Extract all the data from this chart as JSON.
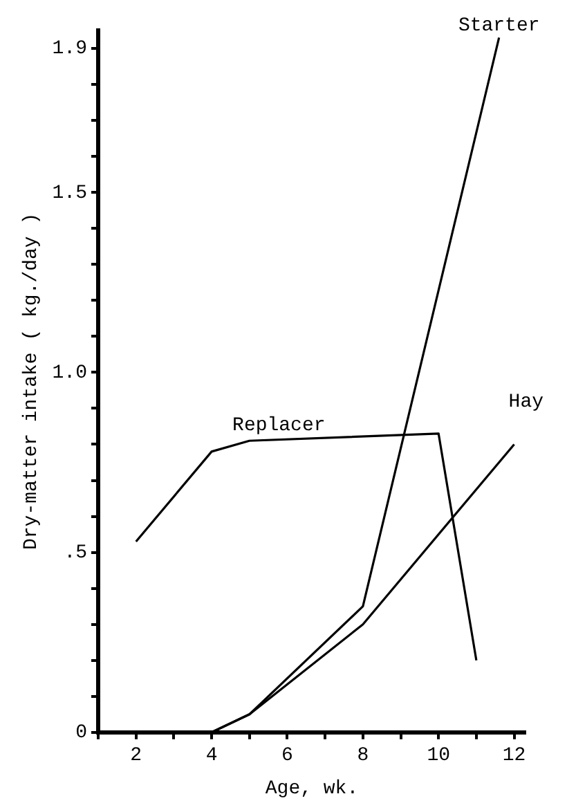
{
  "chart_data": {
    "type": "line",
    "xlabel": "Age, wk.",
    "ylabel": "Dry-matter intake ( kg./day )",
    "xlim": [
      1,
      12.3
    ],
    "ylim": [
      0,
      1.95
    ],
    "xticks": [
      {
        "value": 1,
        "label": null
      },
      2,
      {
        "value": 3,
        "label": null
      },
      4,
      {
        "value": 5,
        "label": null
      },
      6,
      {
        "value": 7,
        "label": null
      },
      8,
      {
        "value": 9,
        "label": null
      },
      10,
      {
        "value": 11,
        "label": null
      },
      12
    ],
    "yticks": [
      0,
      {
        "value": 0.1,
        "label": null
      },
      {
        "value": 0.2,
        "label": null
      },
      {
        "value": 0.3,
        "label": null
      },
      {
        "value": 0.4,
        "label": null
      },
      {
        "value": 0.5,
        "label": ".5"
      },
      {
        "value": 0.6,
        "label": null
      },
      {
        "value": 0.7,
        "label": null
      },
      {
        "value": 0.8,
        "label": null
      },
      {
        "value": 0.9,
        "label": null
      },
      {
        "value": 1,
        "label": "1.0"
      },
      {
        "value": 1.1,
        "label": null
      },
      {
        "value": 1.2,
        "label": null
      },
      {
        "value": 1.3,
        "label": null
      },
      {
        "value": 1.4,
        "label": null
      },
      1.5,
      {
        "value": 1.6,
        "label": null
      },
      {
        "value": 1.7,
        "label": null
      },
      {
        "value": 1.8,
        "label": null
      },
      1.9
    ],
    "series": [
      {
        "name": "Replacer",
        "color": "#000000",
        "x": [
          2,
          4,
          5,
          10,
          11
        ],
        "values": [
          0.53,
          0.78,
          0.81,
          0.83,
          0.2
        ]
      },
      {
        "name": "Starter",
        "color": "#000000",
        "x": [
          4,
          5,
          8,
          11.6
        ],
        "values": [
          0,
          0.05,
          0.35,
          1.93
        ]
      },
      {
        "name": "Hay",
        "color": "#000000",
        "x": [
          4,
          5,
          8,
          12
        ],
        "values": [
          0,
          0.05,
          0.3,
          0.8
        ]
      }
    ],
    "grid": false,
    "legend": false,
    "marker": "none",
    "line_style": "solid"
  }
}
